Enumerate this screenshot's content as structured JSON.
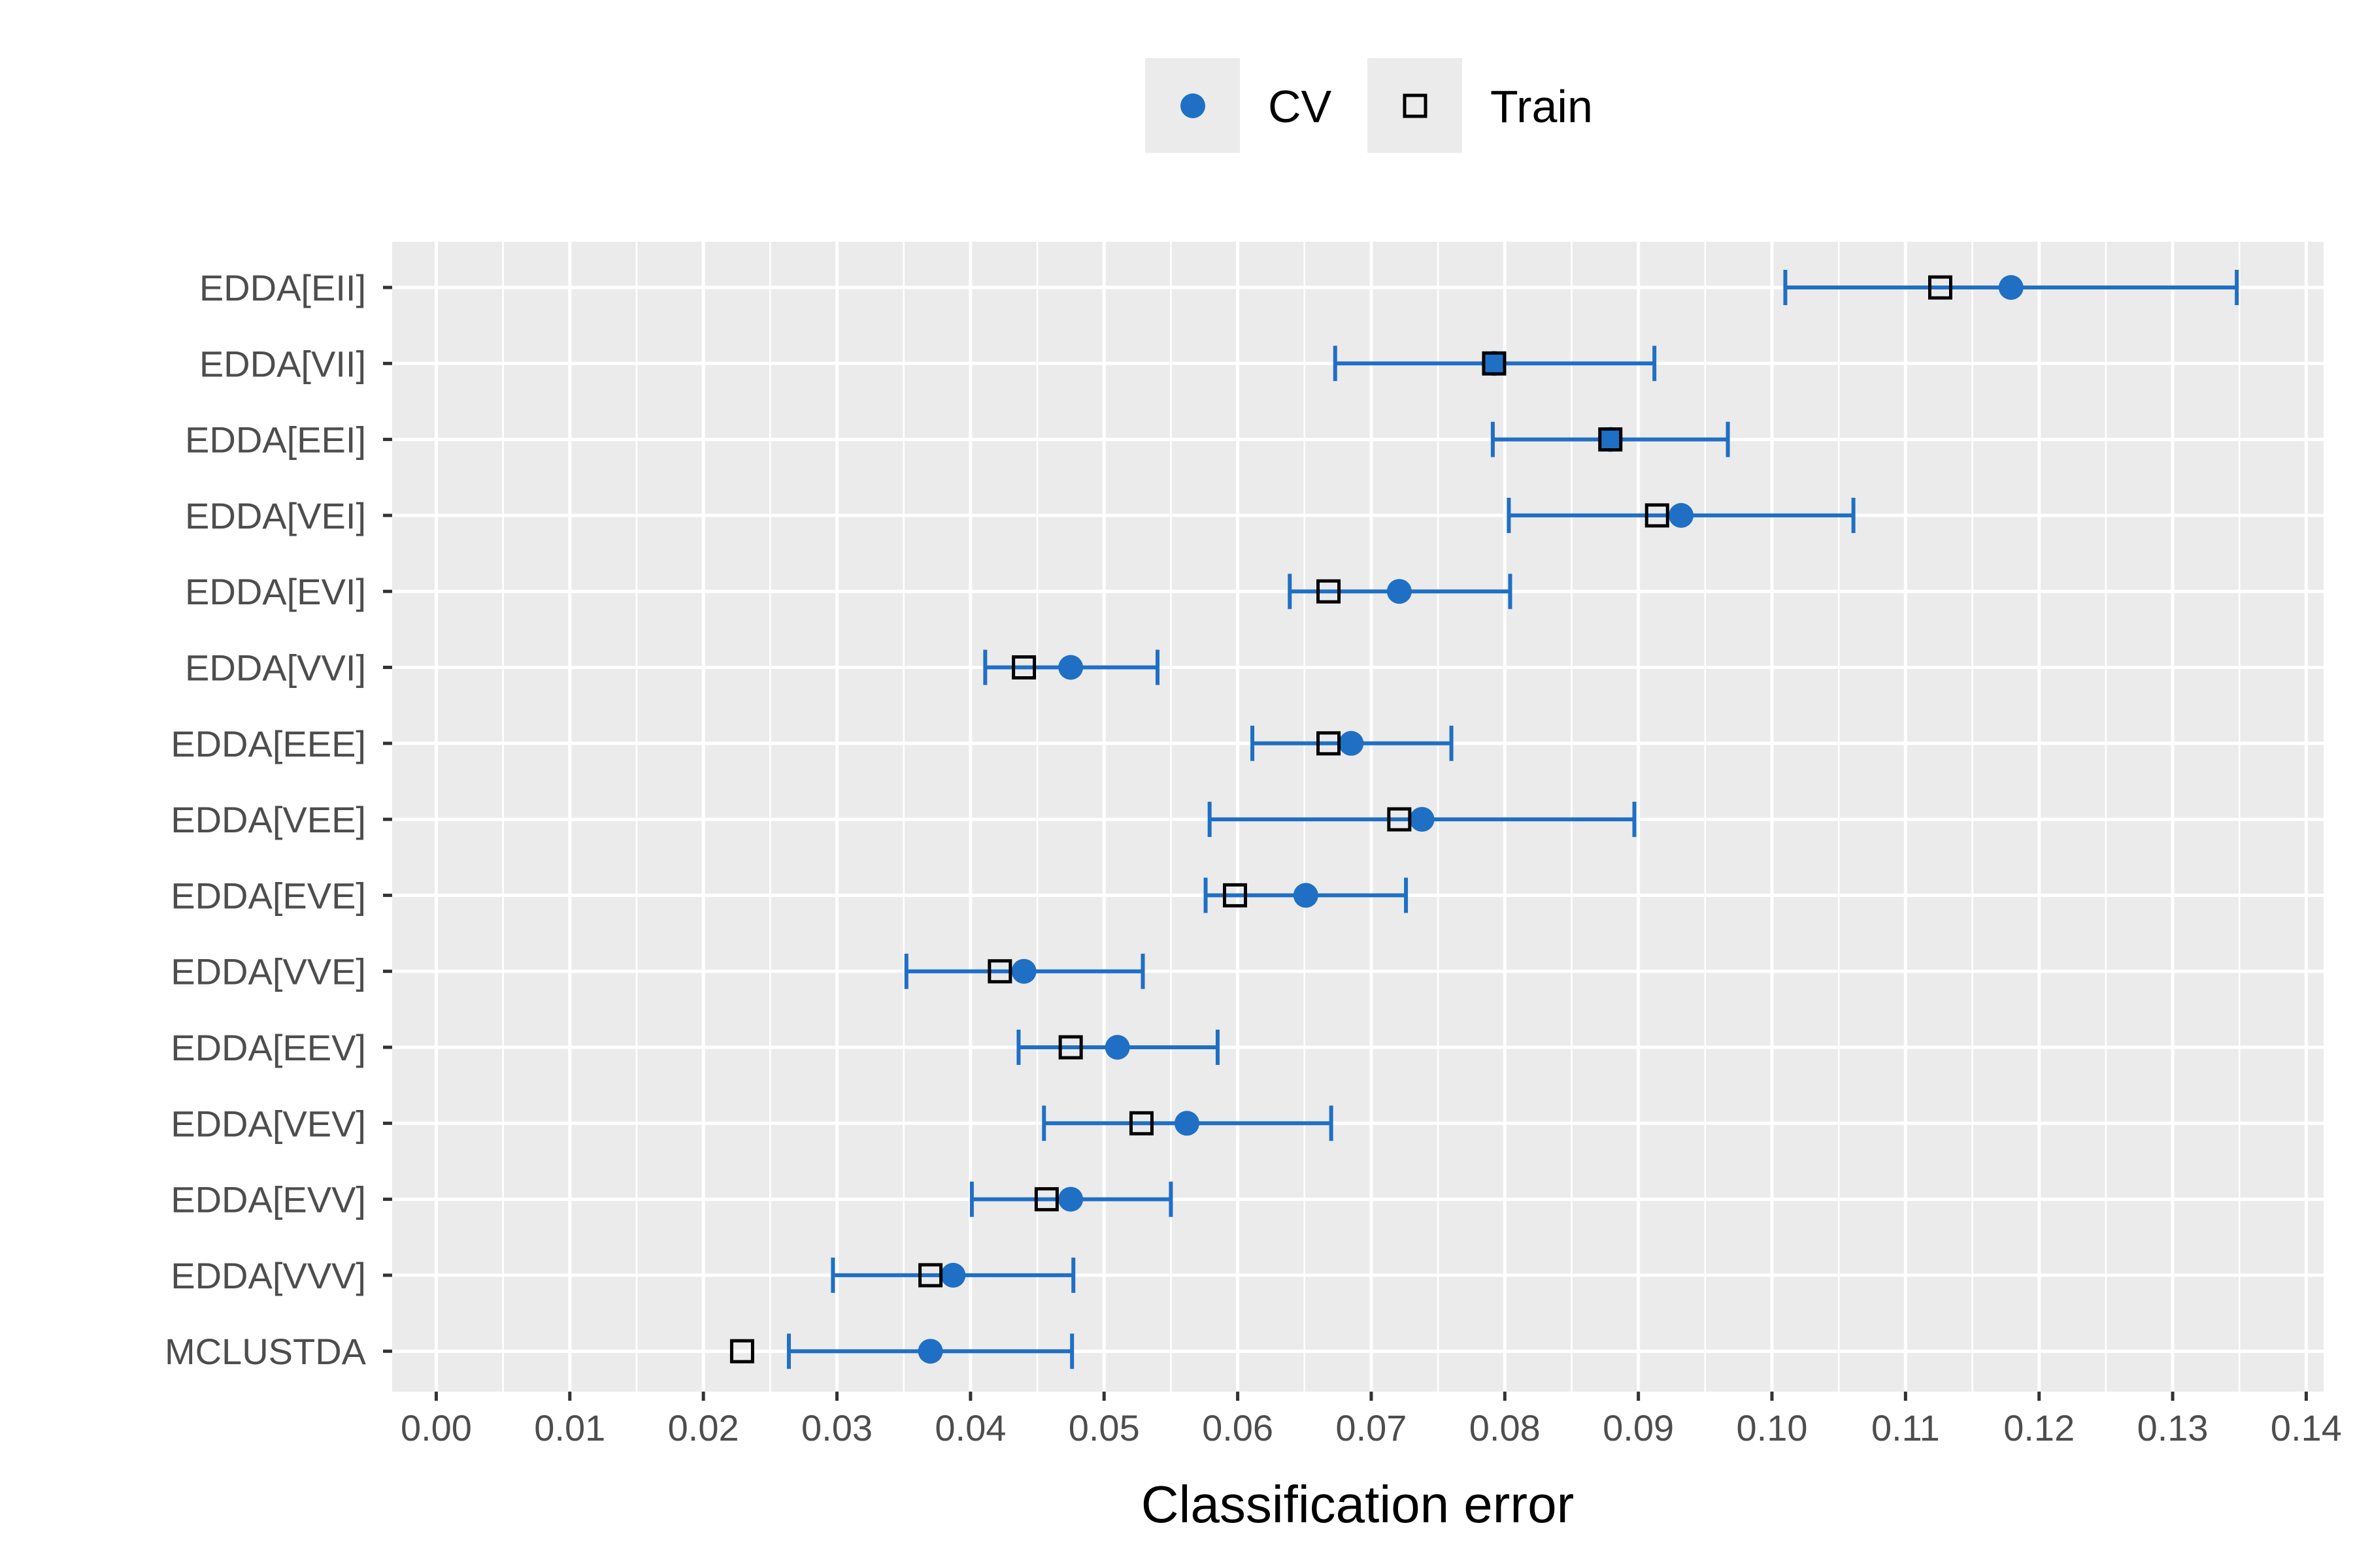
{
  "chart_data": {
    "type": "scatter",
    "xlabel": "Classification error",
    "ylabel": "",
    "xlim": [
      -0.0033,
      0.1413
    ],
    "x_ticks": [
      "0.00",
      "0.01",
      "0.02",
      "0.03",
      "0.04",
      "0.05",
      "0.06",
      "0.07",
      "0.08",
      "0.09",
      "0.10",
      "0.11",
      "0.12",
      "0.13",
      "0.14"
    ],
    "grid": true,
    "legend_position": "top",
    "legend": [
      {
        "label": "CV",
        "marker": "filled-circle"
      },
      {
        "label": "Train",
        "marker": "open-square"
      }
    ],
    "colors": {
      "cv": "#1f6fc5",
      "train_stroke": "#000000",
      "panel": "#ebebeb",
      "grid": "#ffffff",
      "legend_key": "#ebebeb"
    },
    "categories": [
      "EDDA[EII]",
      "EDDA[VII]",
      "EDDA[EEI]",
      "EDDA[VEI]",
      "EDDA[EVI]",
      "EDDA[VVI]",
      "EDDA[EEE]",
      "EDDA[VEE]",
      "EDDA[EVE]",
      "EDDA[VVE]",
      "EDDA[EEV]",
      "EDDA[VEV]",
      "EDDA[EVV]",
      "EDDA[VVV]",
      "MCLUSTDA"
    ],
    "series": [
      {
        "name": "CV",
        "values": [
          0.1179,
          0.0792,
          0.0879,
          0.0932,
          0.0721,
          0.0475,
          0.0685,
          0.0738,
          0.0651,
          0.044,
          0.051,
          0.0562,
          0.0475,
          0.0387,
          0.037
        ]
      },
      {
        "name": "Train",
        "values": [
          0.1126,
          0.0792,
          0.0879,
          0.0914,
          0.0668,
          0.044,
          0.0668,
          0.0721,
          0.0598,
          0.0422,
          0.0475,
          0.0528,
          0.0457,
          0.037,
          0.0229
        ]
      }
    ],
    "error_bars": {
      "series": "CV",
      "lower": [
        0.101,
        0.0673,
        0.0791,
        0.0803,
        0.0639,
        0.0411,
        0.0611,
        0.0579,
        0.0576,
        0.0352,
        0.0436,
        0.0455,
        0.0401,
        0.0297,
        0.0264
      ],
      "upper": [
        0.1348,
        0.0912,
        0.0967,
        0.1061,
        0.0804,
        0.054,
        0.076,
        0.0897,
        0.0726,
        0.0529,
        0.0585,
        0.067,
        0.055,
        0.0477,
        0.0476
      ]
    }
  }
}
